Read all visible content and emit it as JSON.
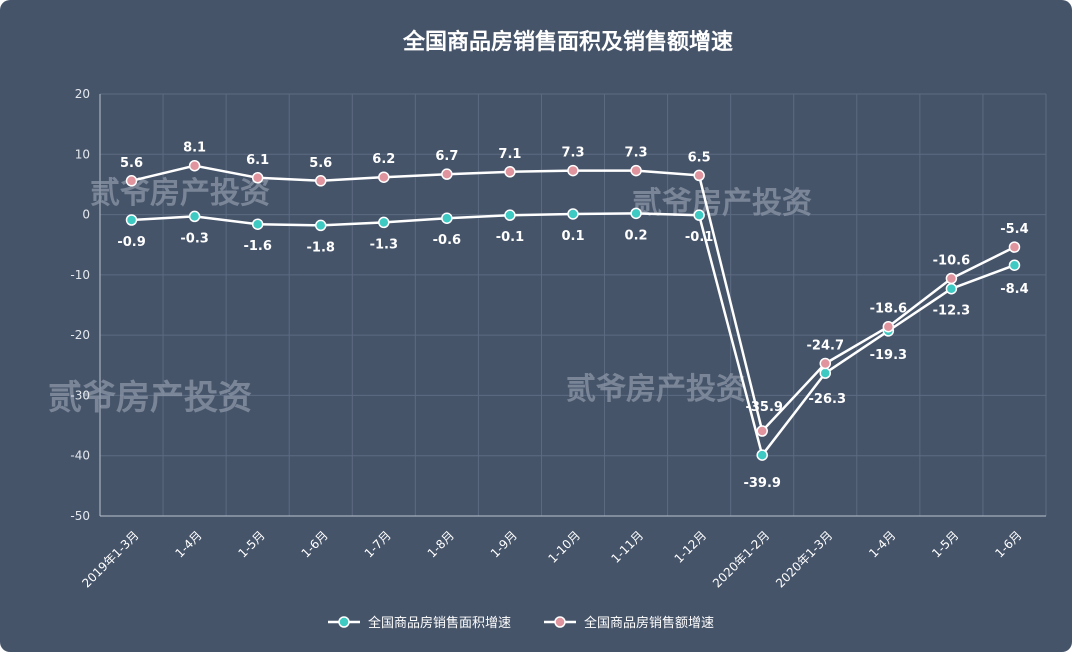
{
  "watermark": "贰爷房产投资",
  "colors": {
    "background": "#46546a",
    "line": "#ffffff",
    "area_marker": "#3ec9c3",
    "sales_marker": "#e0949e"
  },
  "chart_data": {
    "type": "line",
    "title": "全国商品房销售面积及销售额增速",
    "xlabel": "",
    "ylabel": "",
    "ylim": [
      -50,
      20
    ],
    "yticks": [
      20,
      10,
      0,
      -10,
      -20,
      -30,
      -40,
      -50
    ],
    "grid": true,
    "legend_position": "bottom",
    "categories": [
      "2019年1-3月",
      "1-4月",
      "1-5月",
      "1-6月",
      "1-7月",
      "1-8月",
      "1-9月",
      "1-10月",
      "1-11月",
      "1-12月",
      "2020年1-2月",
      "2020年1-3月",
      "1-4月",
      "1-5月",
      "1-6月"
    ],
    "series": [
      {
        "name": "全国商品房销售面积增速",
        "marker_color": "#3ec9c3",
        "values": [
          -0.9,
          -0.3,
          -1.6,
          -1.8,
          -1.3,
          -0.6,
          -0.1,
          0.1,
          0.2,
          -0.1,
          -39.9,
          -26.3,
          -19.3,
          -12.3,
          -8.4
        ],
        "labels": [
          "-0.9",
          "-0.3",
          "-1.6",
          "-1.8",
          "-1.3",
          "-0.6",
          "-0.1",
          "0.1",
          "0.2",
          "-0.1",
          "-39.9",
          "-26.3",
          "-19.3",
          "-12.3",
          "-8.4"
        ]
      },
      {
        "name": "全国商品房销售额增速",
        "marker_color": "#e0949e",
        "values": [
          5.6,
          8.1,
          6.1,
          5.6,
          6.2,
          6.7,
          7.1,
          7.3,
          7.3,
          6.5,
          -35.9,
          -24.7,
          -18.6,
          -10.6,
          -5.4
        ],
        "labels": [
          "5.6",
          "8.1",
          "6.1",
          "5.6",
          "6.2",
          "6.7",
          "7.1",
          "7.3",
          "7.3",
          "6.5",
          "-35.9",
          "-24.7",
          "-18.6",
          "-10.6",
          "-5.4"
        ]
      }
    ]
  }
}
